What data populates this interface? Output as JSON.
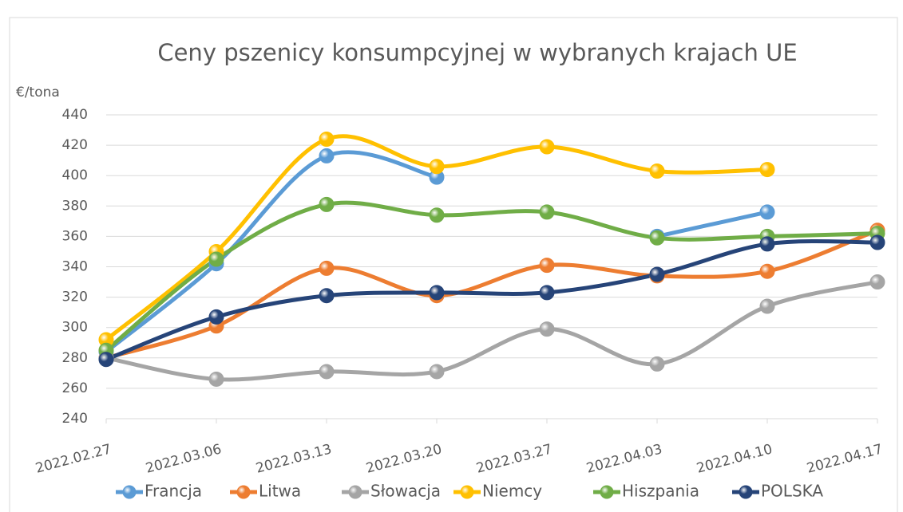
{
  "chart_data": {
    "type": "line",
    "title": "Ceny pszenicy konsumpcyjnej w wybranych krajach UE",
    "y_label": "€/tona",
    "categories": [
      "2022.02.27",
      "2022.03.06",
      "2022.03.13",
      "2022.03.20",
      "2022.03.27",
      "2022.04.03",
      "2022.04.10",
      "2022.04.17"
    ],
    "series": [
      {
        "name": "Francja",
        "color": "#5b9bd5",
        "values": [
          284,
          342,
          413,
          399,
          null,
          360,
          376,
          null
        ]
      },
      {
        "name": "Litwa",
        "color": "#ed7d31",
        "values": [
          280,
          301,
          339,
          321,
          341,
          334,
          337,
          364
        ]
      },
      {
        "name": "Słowacja",
        "color": "#a5a5a5",
        "values": [
          280,
          266,
          271,
          271,
          299,
          276,
          314,
          330
        ]
      },
      {
        "name": "Niemcy",
        "color": "#ffc000",
        "values": [
          292,
          350,
          424,
          406,
          419,
          403,
          404,
          null
        ]
      },
      {
        "name": "Hiszpania",
        "color": "#70ad47",
        "values": [
          285,
          345,
          381,
          374,
          376,
          359,
          360,
          362
        ]
      },
      {
        "name": "POLSKA",
        "color": "#264478",
        "values": [
          279,
          307,
          321,
          323,
          323,
          335,
          355,
          356
        ]
      }
    ],
    "ylim": [
      240,
      440
    ],
    "yticks": [
      240,
      260,
      280,
      300,
      320,
      340,
      360,
      380,
      400,
      420,
      440
    ],
    "grid": true,
    "legend": "bottom"
  }
}
